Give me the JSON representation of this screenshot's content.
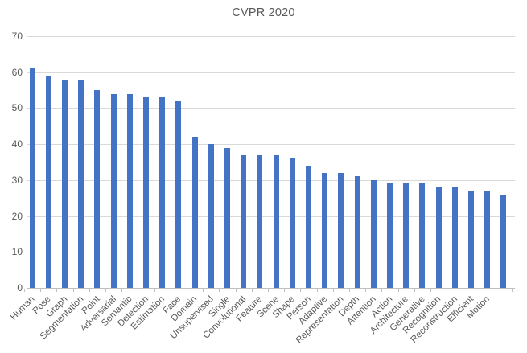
{
  "title": "CVPR 2020",
  "colors": {
    "bar": "#4472C4",
    "gridline": "#D9D9D9",
    "axis": "#BFBFBF",
    "text": "#595959",
    "background": "#FFFFFF"
  },
  "chart_data": {
    "type": "bar",
    "title": "CVPR 2020",
    "xlabel": "",
    "ylabel": "",
    "categories": [
      "Human",
      "Pose",
      "Graph",
      "Segmentation",
      "Point",
      "Adversarial",
      "Semantic",
      "Detection",
      "Estimation",
      "Face",
      "Domain",
      "Unsupervised",
      "Single",
      "Convolutional",
      "Feature",
      "Scene",
      "Shape",
      "Person",
      "Adaptive",
      "Representation",
      "Depth",
      "Attention",
      "Action",
      "Architecture",
      "Generative",
      "Recognition",
      "Reconstruction",
      "Efficient",
      "Motion",
      ""
    ],
    "values": [
      61,
      59,
      58,
      58,
      55,
      54,
      54,
      53,
      53,
      52,
      42,
      40,
      39,
      37,
      37,
      37,
      36,
      34,
      32,
      32,
      31,
      30,
      29,
      29,
      29,
      28,
      28,
      27,
      27,
      26
    ],
    "ylim": [
      0,
      70
    ],
    "yticks": [
      0,
      10,
      20,
      30,
      40,
      50,
      60,
      70
    ],
    "ytick_step": 10,
    "grid": true,
    "legend": false,
    "x_label_rotation_deg": 45
  }
}
